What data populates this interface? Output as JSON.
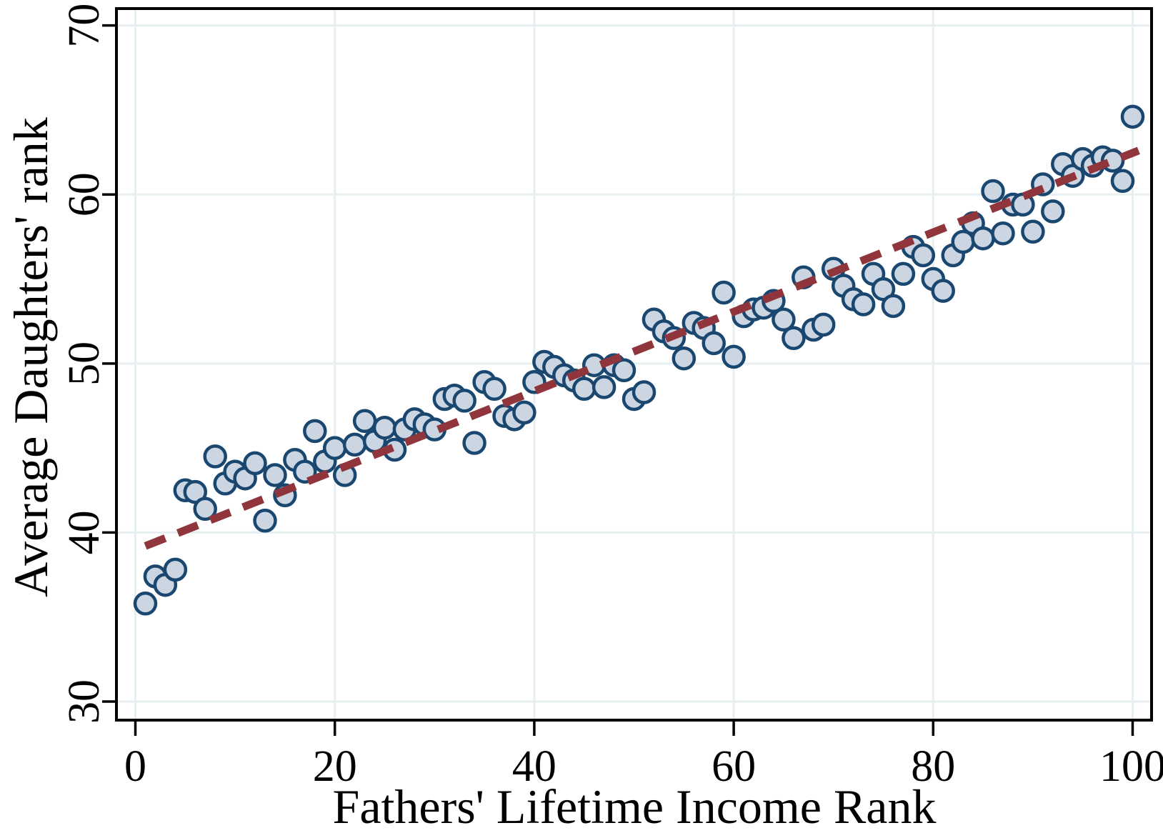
{
  "chart_data": {
    "type": "scatter",
    "title": "",
    "xlabel": "Fathers' Lifetime Income Rank",
    "ylabel": "Average Daughters' rank",
    "x_ticks": [
      0,
      20,
      40,
      60,
      80,
      100
    ],
    "y_ticks": [
      30,
      40,
      50,
      60,
      70
    ],
    "xlim": [
      -1.9,
      101.9
    ],
    "ylim": [
      28.9,
      71.0
    ],
    "grid": true,
    "legend": "none",
    "marker": "circle",
    "points": [
      [
        1,
        35.8
      ],
      [
        2,
        37.4
      ],
      [
        3,
        36.9
      ],
      [
        4,
        37.8
      ],
      [
        5,
        42.5
      ],
      [
        6,
        42.4
      ],
      [
        7,
        41.4
      ],
      [
        8,
        44.5
      ],
      [
        9,
        42.9
      ],
      [
        10,
        43.6
      ],
      [
        11,
        43.2
      ],
      [
        12,
        44.1
      ],
      [
        13,
        40.7
      ],
      [
        14,
        43.4
      ],
      [
        15,
        42.2
      ],
      [
        16,
        44.3
      ],
      [
        17,
        43.6
      ],
      [
        18,
        46.0
      ],
      [
        19,
        44.2
      ],
      [
        20,
        45.0
      ],
      [
        21,
        43.4
      ],
      [
        22,
        45.2
      ],
      [
        23,
        46.6
      ],
      [
        24,
        45.4
      ],
      [
        25,
        46.2
      ],
      [
        26,
        44.9
      ],
      [
        27,
        46.1
      ],
      [
        28,
        46.7
      ],
      [
        29,
        46.4
      ],
      [
        30,
        46.1
      ],
      [
        31,
        47.9
      ],
      [
        32,
        48.1
      ],
      [
        33,
        47.8
      ],
      [
        34,
        45.3
      ],
      [
        35,
        48.9
      ],
      [
        36,
        48.5
      ],
      [
        37,
        46.9
      ],
      [
        38,
        46.7
      ],
      [
        39,
        47.1
      ],
      [
        40,
        48.9
      ],
      [
        41,
        50.1
      ],
      [
        42,
        49.8
      ],
      [
        43,
        49.3
      ],
      [
        44,
        49.0
      ],
      [
        45,
        48.5
      ],
      [
        46,
        49.9
      ],
      [
        47,
        48.6
      ],
      [
        48,
        49.9
      ],
      [
        49,
        49.6
      ],
      [
        50,
        47.9
      ],
      [
        51,
        48.3
      ],
      [
        52,
        52.6
      ],
      [
        53,
        51.9
      ],
      [
        54,
        51.5
      ],
      [
        55,
        50.3
      ],
      [
        56,
        52.4
      ],
      [
        57,
        52.1
      ],
      [
        58,
        51.2
      ],
      [
        59,
        54.2
      ],
      [
        60,
        50.4
      ],
      [
        61,
        52.8
      ],
      [
        62,
        53.2
      ],
      [
        63,
        53.3
      ],
      [
        64,
        53.7
      ],
      [
        65,
        52.6
      ],
      [
        66,
        51.5
      ],
      [
        67,
        55.1
      ],
      [
        68,
        52.0
      ],
      [
        69,
        52.3
      ],
      [
        70,
        55.6
      ],
      [
        71,
        54.6
      ],
      [
        72,
        53.8
      ],
      [
        73,
        53.5
      ],
      [
        74,
        55.3
      ],
      [
        75,
        54.4
      ],
      [
        76,
        53.4
      ],
      [
        77,
        55.3
      ],
      [
        78,
        56.9
      ],
      [
        79,
        56.4
      ],
      [
        80,
        55.0
      ],
      [
        81,
        54.3
      ],
      [
        82,
        56.4
      ],
      [
        83,
        57.2
      ],
      [
        84,
        58.3
      ],
      [
        85,
        57.4
      ],
      [
        86,
        60.2
      ],
      [
        87,
        57.7
      ],
      [
        88,
        59.4
      ],
      [
        89,
        59.4
      ],
      [
        90,
        57.8
      ],
      [
        91,
        60.6
      ],
      [
        92,
        59.0
      ],
      [
        93,
        61.8
      ],
      [
        94,
        61.1
      ],
      [
        95,
        62.1
      ],
      [
        96,
        61.7
      ],
      [
        97,
        62.2
      ],
      [
        98,
        62.0
      ],
      [
        99,
        60.8
      ],
      [
        100,
        64.6
      ]
    ],
    "trend_line": {
      "style": "dashed",
      "x1": 1,
      "y1": 39.2,
      "x2": 100.6,
      "y2": 62.6
    },
    "colors": {
      "marker_fill": "#ccd6e2",
      "marker_stroke": "#1a476f",
      "trend": "#90353b",
      "grid": "#e7eff1",
      "axis": "#000000",
      "background": "#ffffff"
    }
  }
}
